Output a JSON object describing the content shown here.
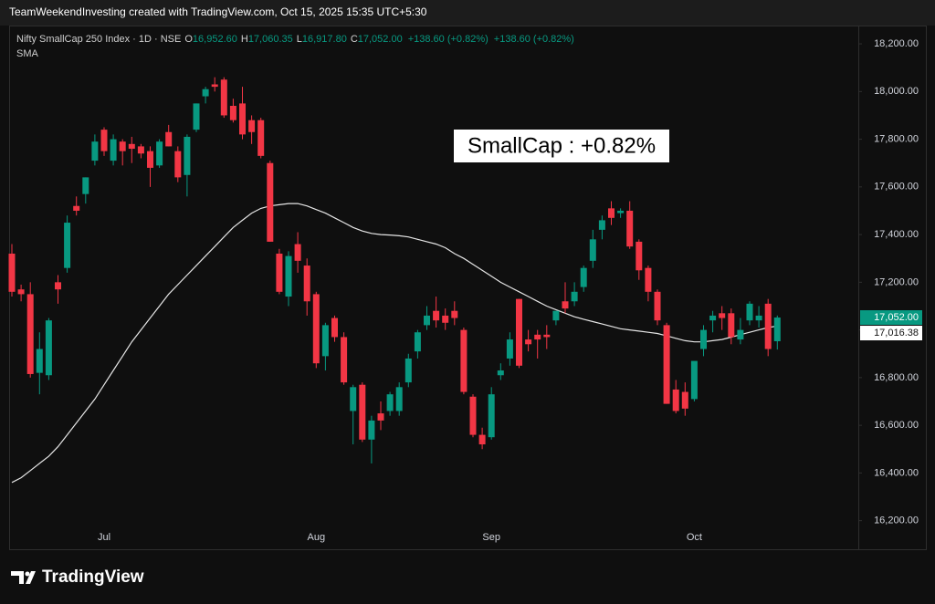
{
  "header": {
    "caption": "TeamWeekendInvesting created with TradingView.com, Oct 15, 2025 15:35 UTC+5:30"
  },
  "footer": {
    "brand": "TradingView"
  },
  "chart_data": {
    "type": "candlestick",
    "title": "Nifty SmallCap 250 Index · 1D · NSE",
    "ohlc_legend": [
      {
        "key": "O",
        "value": "16,952.60"
      },
      {
        "key": "H",
        "value": "17,060.35"
      },
      {
        "key": "L",
        "value": "16,917.80"
      },
      {
        "key": "C",
        "value": "17,052.00"
      }
    ],
    "change": [
      "+138.60 (+0.82%)",
      "+138.60 (+0.82%)"
    ],
    "annotation": "SmallCap : +0.82%",
    "up_color": "#089981",
    "down_color": "#f23645",
    "categories": [
      null,
      null,
      null,
      null,
      null,
      null,
      null,
      null,
      null,
      null,
      "Jul",
      null,
      null,
      null,
      null,
      null,
      null,
      null,
      null,
      null,
      null,
      null,
      null,
      null,
      null,
      null,
      null,
      null,
      null,
      null,
      null,
      null,
      null,
      "Aug",
      null,
      null,
      null,
      null,
      null,
      null,
      null,
      null,
      null,
      null,
      null,
      null,
      null,
      null,
      null,
      null,
      null,
      null,
      "Sep",
      null,
      null,
      null,
      null,
      null,
      null,
      null,
      null,
      null,
      null,
      null,
      null,
      null,
      null,
      null,
      null,
      null,
      null,
      null,
      null,
      null,
      "Oct",
      null,
      null,
      null,
      null,
      null,
      null,
      null,
      null,
      null
    ],
    "open": [
      17320,
      17170,
      17150,
      16820,
      16810,
      17200,
      17260,
      17520,
      17570,
      17710,
      17840,
      17710,
      17790,
      17780,
      17770,
      17750,
      17690,
      17830,
      17750,
      17650,
      17840,
      17980,
      18030,
      18050,
      17940,
      17950,
      17880,
      17880,
      17700,
      17320,
      17140,
      17360,
      17270,
      17150,
      16890,
      17050,
      16970,
      16660,
      16770,
      16540,
      16650,
      16660,
      16660,
      16780,
      16910,
      17020,
      17080,
      17060,
      17080,
      17000,
      16720,
      16560,
      16550,
      16810,
      16880,
      17130,
      16960,
      16980,
      16980,
      17040,
      17120,
      17120,
      17180,
      17290,
      17420,
      17510,
      17490,
      17500,
      17370,
      17260,
      17160,
      17020,
      16750,
      16740,
      16710,
      16920,
      17040,
      17070,
      17070,
      16960,
      17040,
      17040,
      17110,
      16952.6
    ],
    "high": [
      17360,
      17190,
      17200,
      16990,
      17050,
      17230,
      17480,
      17560,
      17640,
      17820,
      17850,
      17820,
      17800,
      17810,
      17780,
      17770,
      17800,
      17860,
      17770,
      17820,
      17950,
      18020,
      18060,
      18060,
      17970,
      18020,
      17900,
      17890,
      17710,
      17340,
      17330,
      17410,
      17300,
      17160,
      17030,
      17060,
      16990,
      16770,
      16780,
      16640,
      16700,
      16740,
      16780,
      16900,
      17000,
      17100,
      17140,
      17090,
      17120,
      17010,
      16730,
      16590,
      16760,
      16860,
      16990,
      17130,
      17000,
      17000,
      17020,
      17080,
      17200,
      17200,
      17270,
      17420,
      17480,
      17540,
      17510,
      17540,
      17380,
      17270,
      17170,
      17030,
      16790,
      16780,
      16860,
      17020,
      17080,
      17100,
      17090,
      17050,
      17120,
      17100,
      17130,
      17060.35
    ],
    "low": [
      17140,
      17120,
      16800,
      16730,
      16790,
      17110,
      17240,
      17480,
      17530,
      17690,
      17730,
      17690,
      17690,
      17700,
      17720,
      17600,
      17680,
      17770,
      17620,
      17560,
      17830,
      17950,
      18000,
      17890,
      17870,
      17800,
      17780,
      17720,
      17370,
      17150,
      17100,
      17240,
      17060,
      16840,
      16830,
      16950,
      16770,
      16520,
      16530,
      16440,
      16580,
      16640,
      16640,
      16760,
      16880,
      17000,
      17010,
      17000,
      17020,
      16730,
      16550,
      16500,
      16540,
      16790,
      16850,
      16840,
      16910,
      16880,
      16920,
      17020,
      17070,
      17100,
      17160,
      17260,
      17380,
      17440,
      17470,
      17340,
      17210,
      17120,
      17020,
      16690,
      16650,
      16640,
      16700,
      16890,
      16990,
      17000,
      16940,
      16940,
      17020,
      17010,
      16890,
      16917.8
    ],
    "close": [
      17160,
      17150,
      16815,
      16920,
      17040,
      17170,
      17450,
      17500,
      17640,
      17790,
      17750,
      17800,
      17750,
      17760,
      17740,
      17680,
      17790,
      17770,
      17640,
      17810,
      17950,
      18010,
      18020,
      17900,
      17880,
      17820,
      17830,
      17730,
      17370,
      17160,
      17310,
      17290,
      17120,
      16860,
      17020,
      16970,
      16780,
      16760,
      16540,
      16620,
      16620,
      16730,
      16760,
      16880,
      16990,
      17060,
      17040,
      17030,
      17050,
      16740,
      16560,
      16520,
      16730,
      16830,
      16960,
      16850,
      16940,
      16960,
      16970,
      17080,
      17090,
      17160,
      17260,
      17380,
      17460,
      17470,
      17500,
      17350,
      17250,
      17160,
      17040,
      16690,
      16660,
      16670,
      16870,
      17000,
      17060,
      17050,
      16970,
      17000,
      17110,
      17060,
      16920,
      17052
    ],
    "price_label": "17,052.00",
    "sma": {
      "name": "SMA",
      "color": "#e6e6e6",
      "value_label": "17,016.38",
      "values": [
        16360,
        16380,
        16410,
        16440,
        16470,
        16510,
        16560,
        16610,
        16660,
        16710,
        16770,
        16830,
        16890,
        16950,
        17000,
        17050,
        17100,
        17150,
        17190,
        17230,
        17270,
        17310,
        17350,
        17390,
        17430,
        17460,
        17490,
        17510,
        17520,
        17525,
        17530,
        17530,
        17520,
        17505,
        17490,
        17470,
        17450,
        17430,
        17415,
        17405,
        17400,
        17398,
        17395,
        17390,
        17380,
        17370,
        17360,
        17345,
        17320,
        17300,
        17275,
        17250,
        17225,
        17200,
        17180,
        17160,
        17140,
        17120,
        17100,
        17085,
        17070,
        17055,
        17045,
        17035,
        17025,
        17015,
        17005,
        17000,
        16995,
        16990,
        16985,
        16975,
        16965,
        16955,
        16950,
        16950,
        16955,
        16960,
        16970,
        16980,
        16990,
        17000,
        17010,
        17016.38
      ]
    },
    "ylim": [
      16080,
      18250
    ],
    "yticks": [
      {
        "value": 16200,
        "label": "16,200.00"
      },
      {
        "value": 16400,
        "label": "16,400.00"
      },
      {
        "value": 16600,
        "label": "16,600.00"
      },
      {
        "value": 16800,
        "label": "16,800.00"
      },
      {
        "value": 17000,
        "label": "17,000.00"
      },
      {
        "value": 17200,
        "label": "17,200.00"
      },
      {
        "value": 17400,
        "label": "17,400.00"
      },
      {
        "value": 17600,
        "label": "17,600.00"
      },
      {
        "value": 17800,
        "label": "17,800.00"
      },
      {
        "value": 18000,
        "label": "18,000.00"
      },
      {
        "value": 18200,
        "label": "18,200.00"
      }
    ],
    "grid": false
  }
}
